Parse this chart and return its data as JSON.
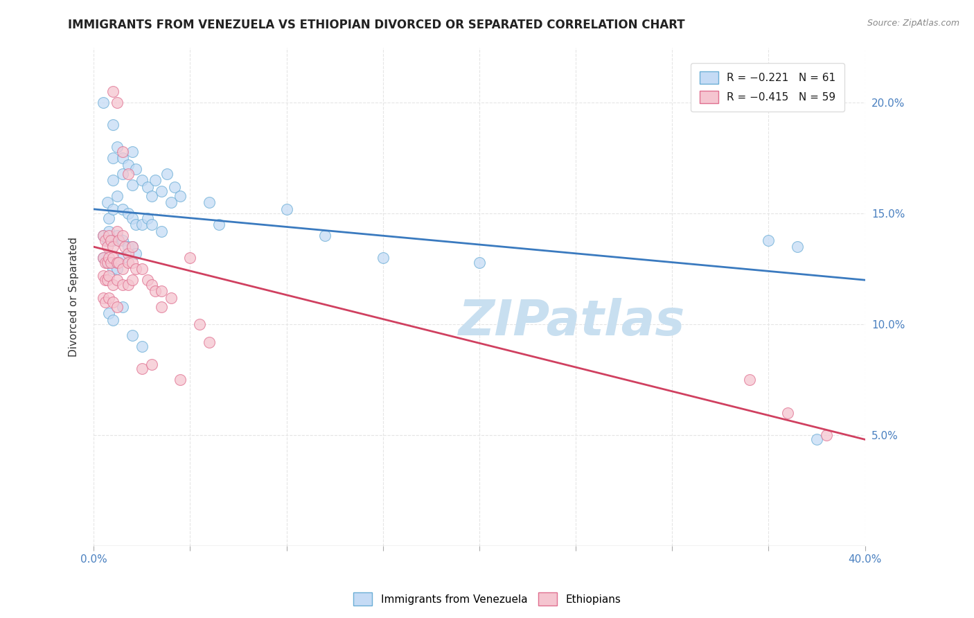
{
  "title": "IMMIGRANTS FROM VENEZUELA VS ETHIOPIAN DIVORCED OR SEPARATED CORRELATION CHART",
  "source": "Source: ZipAtlas.com",
  "ylabel": "Divorced or Separated",
  "xlim": [
    0.0,
    0.4
  ],
  "ylim": [
    0.0,
    0.225
  ],
  "yticks": [
    0.05,
    0.1,
    0.15,
    0.2
  ],
  "ytick_labels": [
    "5.0%",
    "10.0%",
    "15.0%",
    "20.0%"
  ],
  "xticks": [
    0.0,
    0.05,
    0.1,
    0.15,
    0.2,
    0.25,
    0.3,
    0.35,
    0.4
  ],
  "legend_labels": [
    "Immigrants from Venezuela",
    "Ethiopians"
  ],
  "watermark": "ZIPatlas",
  "blue_fill": "#c5dbf5",
  "pink_fill": "#f5c5d0",
  "blue_edge": "#6baed6",
  "pink_edge": "#e07090",
  "blue_line_color": "#3a7abf",
  "pink_line_color": "#d04060",
  "blue_scatter": [
    [
      0.005,
      0.2
    ],
    [
      0.01,
      0.175
    ],
    [
      0.01,
      0.165
    ],
    [
      0.01,
      0.19
    ],
    [
      0.012,
      0.18
    ],
    [
      0.015,
      0.175
    ],
    [
      0.015,
      0.168
    ],
    [
      0.018,
      0.172
    ],
    [
      0.02,
      0.178
    ],
    [
      0.02,
      0.163
    ],
    [
      0.022,
      0.17
    ],
    [
      0.025,
      0.165
    ],
    [
      0.028,
      0.162
    ],
    [
      0.03,
      0.158
    ],
    [
      0.032,
      0.165
    ],
    [
      0.035,
      0.16
    ],
    [
      0.038,
      0.168
    ],
    [
      0.04,
      0.155
    ],
    [
      0.042,
      0.162
    ],
    [
      0.045,
      0.158
    ],
    [
      0.007,
      0.155
    ],
    [
      0.008,
      0.148
    ],
    [
      0.01,
      0.152
    ],
    [
      0.012,
      0.158
    ],
    [
      0.015,
      0.152
    ],
    [
      0.018,
      0.15
    ],
    [
      0.02,
      0.148
    ],
    [
      0.022,
      0.145
    ],
    [
      0.025,
      0.145
    ],
    [
      0.028,
      0.148
    ],
    [
      0.03,
      0.145
    ],
    [
      0.035,
      0.142
    ],
    [
      0.005,
      0.14
    ],
    [
      0.007,
      0.138
    ],
    [
      0.008,
      0.142
    ],
    [
      0.01,
      0.138
    ],
    [
      0.012,
      0.14
    ],
    [
      0.015,
      0.138
    ],
    [
      0.018,
      0.135
    ],
    [
      0.02,
      0.135
    ],
    [
      0.022,
      0.132
    ],
    [
      0.005,
      0.13
    ],
    [
      0.007,
      0.128
    ],
    [
      0.008,
      0.128
    ],
    [
      0.01,
      0.125
    ],
    [
      0.012,
      0.125
    ],
    [
      0.015,
      0.13
    ],
    [
      0.06,
      0.155
    ],
    [
      0.065,
      0.145
    ],
    [
      0.1,
      0.152
    ],
    [
      0.12,
      0.14
    ],
    [
      0.15,
      0.13
    ],
    [
      0.2,
      0.128
    ],
    [
      0.35,
      0.138
    ],
    [
      0.365,
      0.135
    ],
    [
      0.375,
      0.048
    ],
    [
      0.008,
      0.105
    ],
    [
      0.01,
      0.102
    ],
    [
      0.015,
      0.108
    ],
    [
      0.02,
      0.095
    ],
    [
      0.025,
      0.09
    ]
  ],
  "pink_scatter": [
    [
      0.01,
      0.205
    ],
    [
      0.012,
      0.2
    ],
    [
      0.015,
      0.178
    ],
    [
      0.018,
      0.168
    ],
    [
      0.005,
      0.14
    ],
    [
      0.006,
      0.138
    ],
    [
      0.007,
      0.135
    ],
    [
      0.008,
      0.14
    ],
    [
      0.009,
      0.138
    ],
    [
      0.01,
      0.135
    ],
    [
      0.012,
      0.142
    ],
    [
      0.013,
      0.138
    ],
    [
      0.015,
      0.14
    ],
    [
      0.016,
      0.135
    ],
    [
      0.018,
      0.132
    ],
    [
      0.02,
      0.135
    ],
    [
      0.005,
      0.13
    ],
    [
      0.006,
      0.128
    ],
    [
      0.007,
      0.128
    ],
    [
      0.008,
      0.13
    ],
    [
      0.009,
      0.128
    ],
    [
      0.01,
      0.13
    ],
    [
      0.012,
      0.128
    ],
    [
      0.013,
      0.128
    ],
    [
      0.015,
      0.125
    ],
    [
      0.018,
      0.128
    ],
    [
      0.02,
      0.128
    ],
    [
      0.022,
      0.125
    ],
    [
      0.005,
      0.122
    ],
    [
      0.006,
      0.12
    ],
    [
      0.007,
      0.12
    ],
    [
      0.008,
      0.122
    ],
    [
      0.01,
      0.118
    ],
    [
      0.012,
      0.12
    ],
    [
      0.015,
      0.118
    ],
    [
      0.018,
      0.118
    ],
    [
      0.02,
      0.12
    ],
    [
      0.005,
      0.112
    ],
    [
      0.006,
      0.11
    ],
    [
      0.008,
      0.112
    ],
    [
      0.01,
      0.11
    ],
    [
      0.012,
      0.108
    ],
    [
      0.025,
      0.125
    ],
    [
      0.028,
      0.12
    ],
    [
      0.03,
      0.118
    ],
    [
      0.032,
      0.115
    ],
    [
      0.035,
      0.115
    ],
    [
      0.04,
      0.112
    ],
    [
      0.035,
      0.108
    ],
    [
      0.05,
      0.13
    ],
    [
      0.055,
      0.1
    ],
    [
      0.06,
      0.092
    ],
    [
      0.025,
      0.08
    ],
    [
      0.03,
      0.082
    ],
    [
      0.045,
      0.075
    ],
    [
      0.34,
      0.075
    ],
    [
      0.36,
      0.06
    ],
    [
      0.38,
      0.05
    ]
  ],
  "blue_line_x": [
    0.0,
    0.4
  ],
  "blue_line_y": [
    0.152,
    0.12
  ],
  "pink_line_x": [
    0.0,
    0.4
  ],
  "pink_line_y": [
    0.135,
    0.048
  ],
  "background_color": "#ffffff",
  "grid_color": "#e5e5e5",
  "title_fontsize": 12,
  "axis_label_fontsize": 11,
  "tick_fontsize": 11,
  "watermark_fontsize": 52,
  "watermark_color": "#c8dff0",
  "legend_r_color": "#e04060",
  "legend_n_color": "#2060c0",
  "source_color": "#888888"
}
